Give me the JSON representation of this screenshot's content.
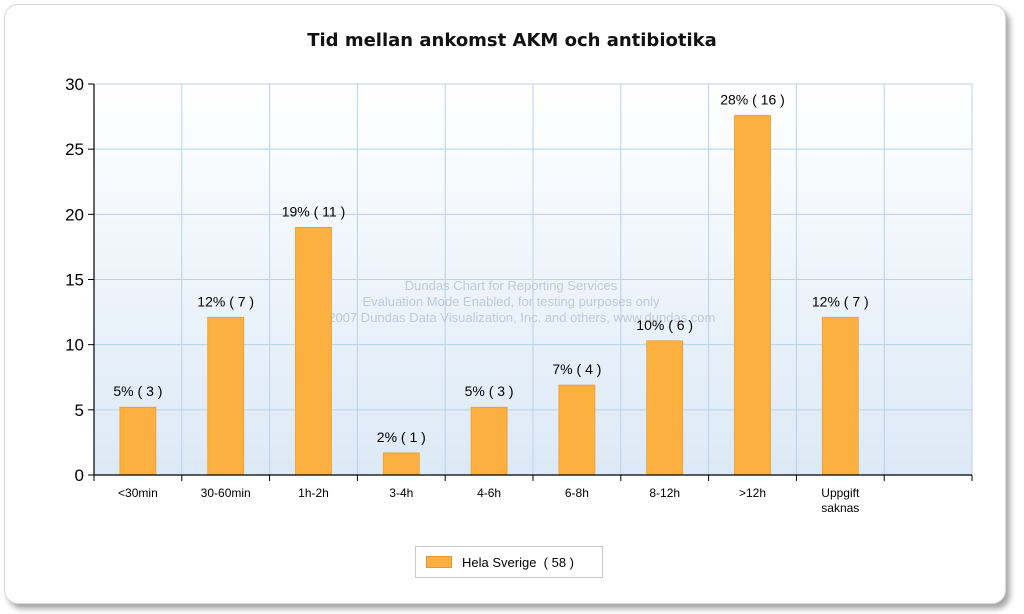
{
  "chart_data": {
    "type": "bar",
    "title": "Tid mellan ankomst AKM och antibiotika",
    "categories": [
      "<30min",
      "30-60min",
      "1h-2h",
      "3-4h",
      "4-6h",
      "6-8h",
      "8-12h",
      ">12h",
      "Uppgift saknas"
    ],
    "values": [
      5.2,
      12.1,
      19.0,
      1.7,
      5.2,
      6.9,
      10.3,
      27.6,
      12.1
    ],
    "data_labels": [
      "5% ( 3 )",
      "12% ( 7 )",
      "19% ( 11 )",
      "2% ( 1 )",
      "5% ( 3 )",
      "7% ( 4 )",
      "10% ( 6 )",
      "28% ( 16 )",
      "12% ( 7 )"
    ],
    "ylim": [
      0,
      30
    ],
    "yticks": [
      0,
      5,
      10,
      15,
      20,
      25,
      30
    ],
    "grid": true,
    "series": [
      {
        "name": "Hela Sverige  ( 58 )",
        "color": "#fbb040"
      }
    ],
    "legend_position": "bottom-center",
    "watermark": [
      "Dundas Chart for Reporting Services",
      "Evaluation Mode Enabled, for testing purposes only",
      "(C) 2007 Dundas Data Visualization, Inc. and others, www.dundas.com"
    ]
  }
}
